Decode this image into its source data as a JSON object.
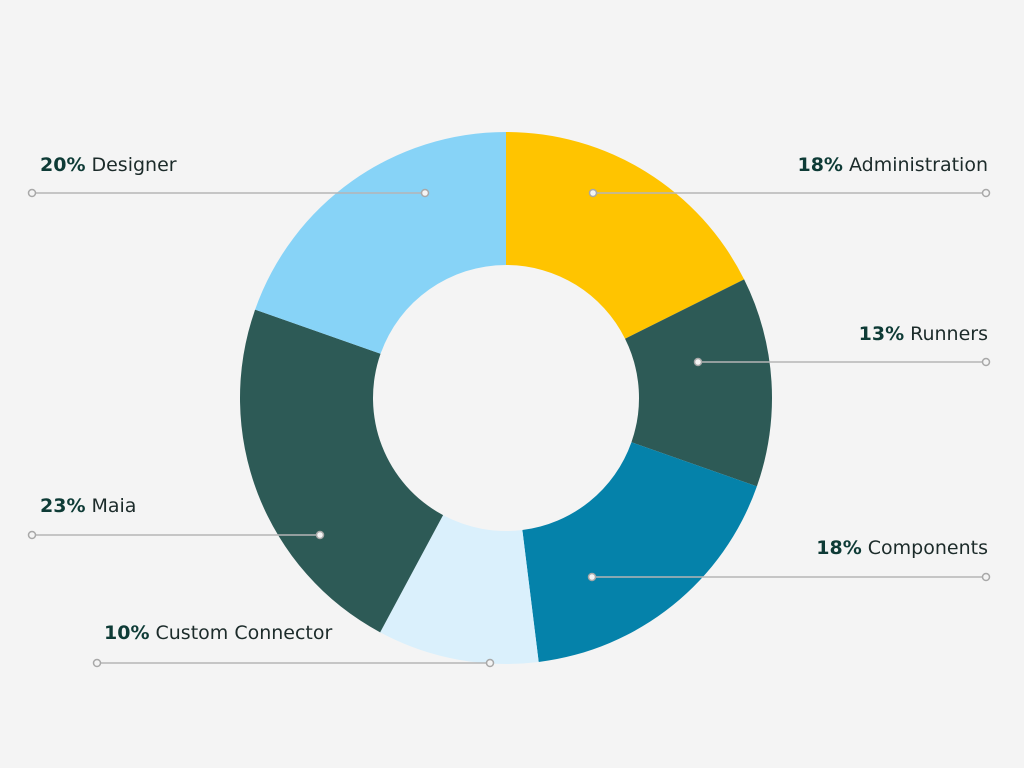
{
  "chart_data": {
    "type": "donut",
    "categories": [
      "Administration",
      "Runners",
      "Components",
      "Custom Connector",
      "Maia",
      "Designer"
    ],
    "values": [
      18,
      13,
      18,
      10,
      23,
      20
    ],
    "value_labels": [
      "18%",
      "13%",
      "18%",
      "10%",
      "23%",
      "20%"
    ],
    "colors": [
      "#FFC400",
      "#2D5A56",
      "#0582AA",
      "#DAF0FC",
      "#2D5A56",
      "#87D3F7"
    ]
  }
}
